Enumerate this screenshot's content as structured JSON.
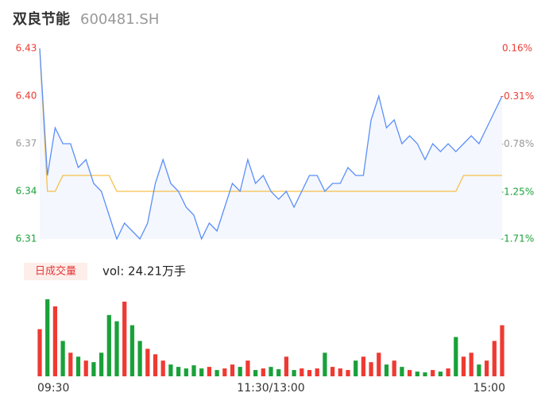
{
  "chart_data": {
    "type": "intraday",
    "title": "双良节能",
    "subtitle": "600481.SH",
    "volume_label": "日成交量",
    "volume_total": "vol: 24.21万手",
    "ylim": [
      6.31,
      6.43
    ],
    "yticks": [
      {
        "value": 6.31,
        "label": "6.31"
      },
      {
        "value": 6.34,
        "label": "6.34"
      },
      {
        "value": 6.37,
        "label": "6.37"
      },
      {
        "value": 6.4,
        "label": "6.40"
      },
      {
        "value": 6.43,
        "label": "6.43"
      }
    ],
    "ytick_colors": [
      "#1aa13a",
      "#1aa13a",
      "#999999",
      "#ee3a32",
      "#ee3a32"
    ],
    "y2lim": [
      -1.71,
      0.16
    ],
    "y2ticks": [
      {
        "value": -1.71,
        "label": "-1.71%"
      },
      {
        "value": -1.25,
        "label": "-1.25%"
      },
      {
        "value": -0.78,
        "label": "-0.78%"
      },
      {
        "value": -0.31,
        "label": "-0.31%"
      },
      {
        "value": 0.16,
        "label": "0.16%"
      }
    ],
    "xlim": [
      0,
      60
    ],
    "xticks": [
      {
        "value": 0,
        "label": "09:30"
      },
      {
        "value": 30,
        "label": "11:30/13:00"
      },
      {
        "value": 60,
        "label": "15:00"
      }
    ],
    "up_color": "#ee3a32",
    "down_color": "#1aa13a",
    "series": [
      {
        "name": "price",
        "color": "#5b8ff9",
        "values": [
          6.43,
          6.35,
          6.38,
          6.37,
          6.37,
          6.355,
          6.36,
          6.345,
          6.34,
          6.325,
          6.31,
          6.32,
          6.315,
          6.31,
          6.32,
          6.345,
          6.36,
          6.345,
          6.34,
          6.33,
          6.325,
          6.31,
          6.32,
          6.315,
          6.33,
          6.345,
          6.34,
          6.36,
          6.345,
          6.35,
          6.34,
          6.335,
          6.34,
          6.33,
          6.34,
          6.35,
          6.35,
          6.34,
          6.345,
          6.345,
          6.355,
          6.35,
          6.35,
          6.385,
          6.4,
          6.38,
          6.385,
          6.37,
          6.375,
          6.37,
          6.36,
          6.37,
          6.365,
          6.37,
          6.365,
          6.37,
          6.375,
          6.37,
          6.38,
          6.39,
          6.4
        ]
      },
      {
        "name": "average",
        "color": "#f5c04a",
        "values": [
          6.43,
          6.34,
          6.34,
          6.35,
          6.35,
          6.35,
          6.35,
          6.35,
          6.35,
          6.35,
          6.34,
          6.34,
          6.34,
          6.34,
          6.34,
          6.34,
          6.34,
          6.34,
          6.34,
          6.34,
          6.34,
          6.34,
          6.34,
          6.34,
          6.34,
          6.34,
          6.34,
          6.34,
          6.34,
          6.34,
          6.34,
          6.34,
          6.34,
          6.34,
          6.34,
          6.34,
          6.34,
          6.34,
          6.34,
          6.34,
          6.34,
          6.34,
          6.34,
          6.34,
          6.34,
          6.34,
          6.34,
          6.34,
          6.34,
          6.34,
          6.34,
          6.34,
          6.34,
          6.34,
          6.34,
          6.35,
          6.35,
          6.35,
          6.35,
          6.35,
          6.35
        ]
      }
    ],
    "volume": {
      "ylim": [
        0,
        100
      ],
      "values": [
        60,
        98,
        89,
        45,
        30,
        25,
        20,
        18,
        30,
        78,
        70,
        95,
        65,
        45,
        35,
        28,
        20,
        15,
        12,
        10,
        14,
        10,
        12,
        8,
        10,
        15,
        12,
        20,
        8,
        10,
        12,
        9,
        25,
        8,
        10,
        8,
        10,
        30,
        12,
        10,
        8,
        20,
        25,
        18,
        30,
        15,
        20,
        12,
        8,
        6,
        5,
        8,
        6,
        10,
        50,
        25,
        30,
        15,
        20,
        45,
        65
      ]
    }
  }
}
